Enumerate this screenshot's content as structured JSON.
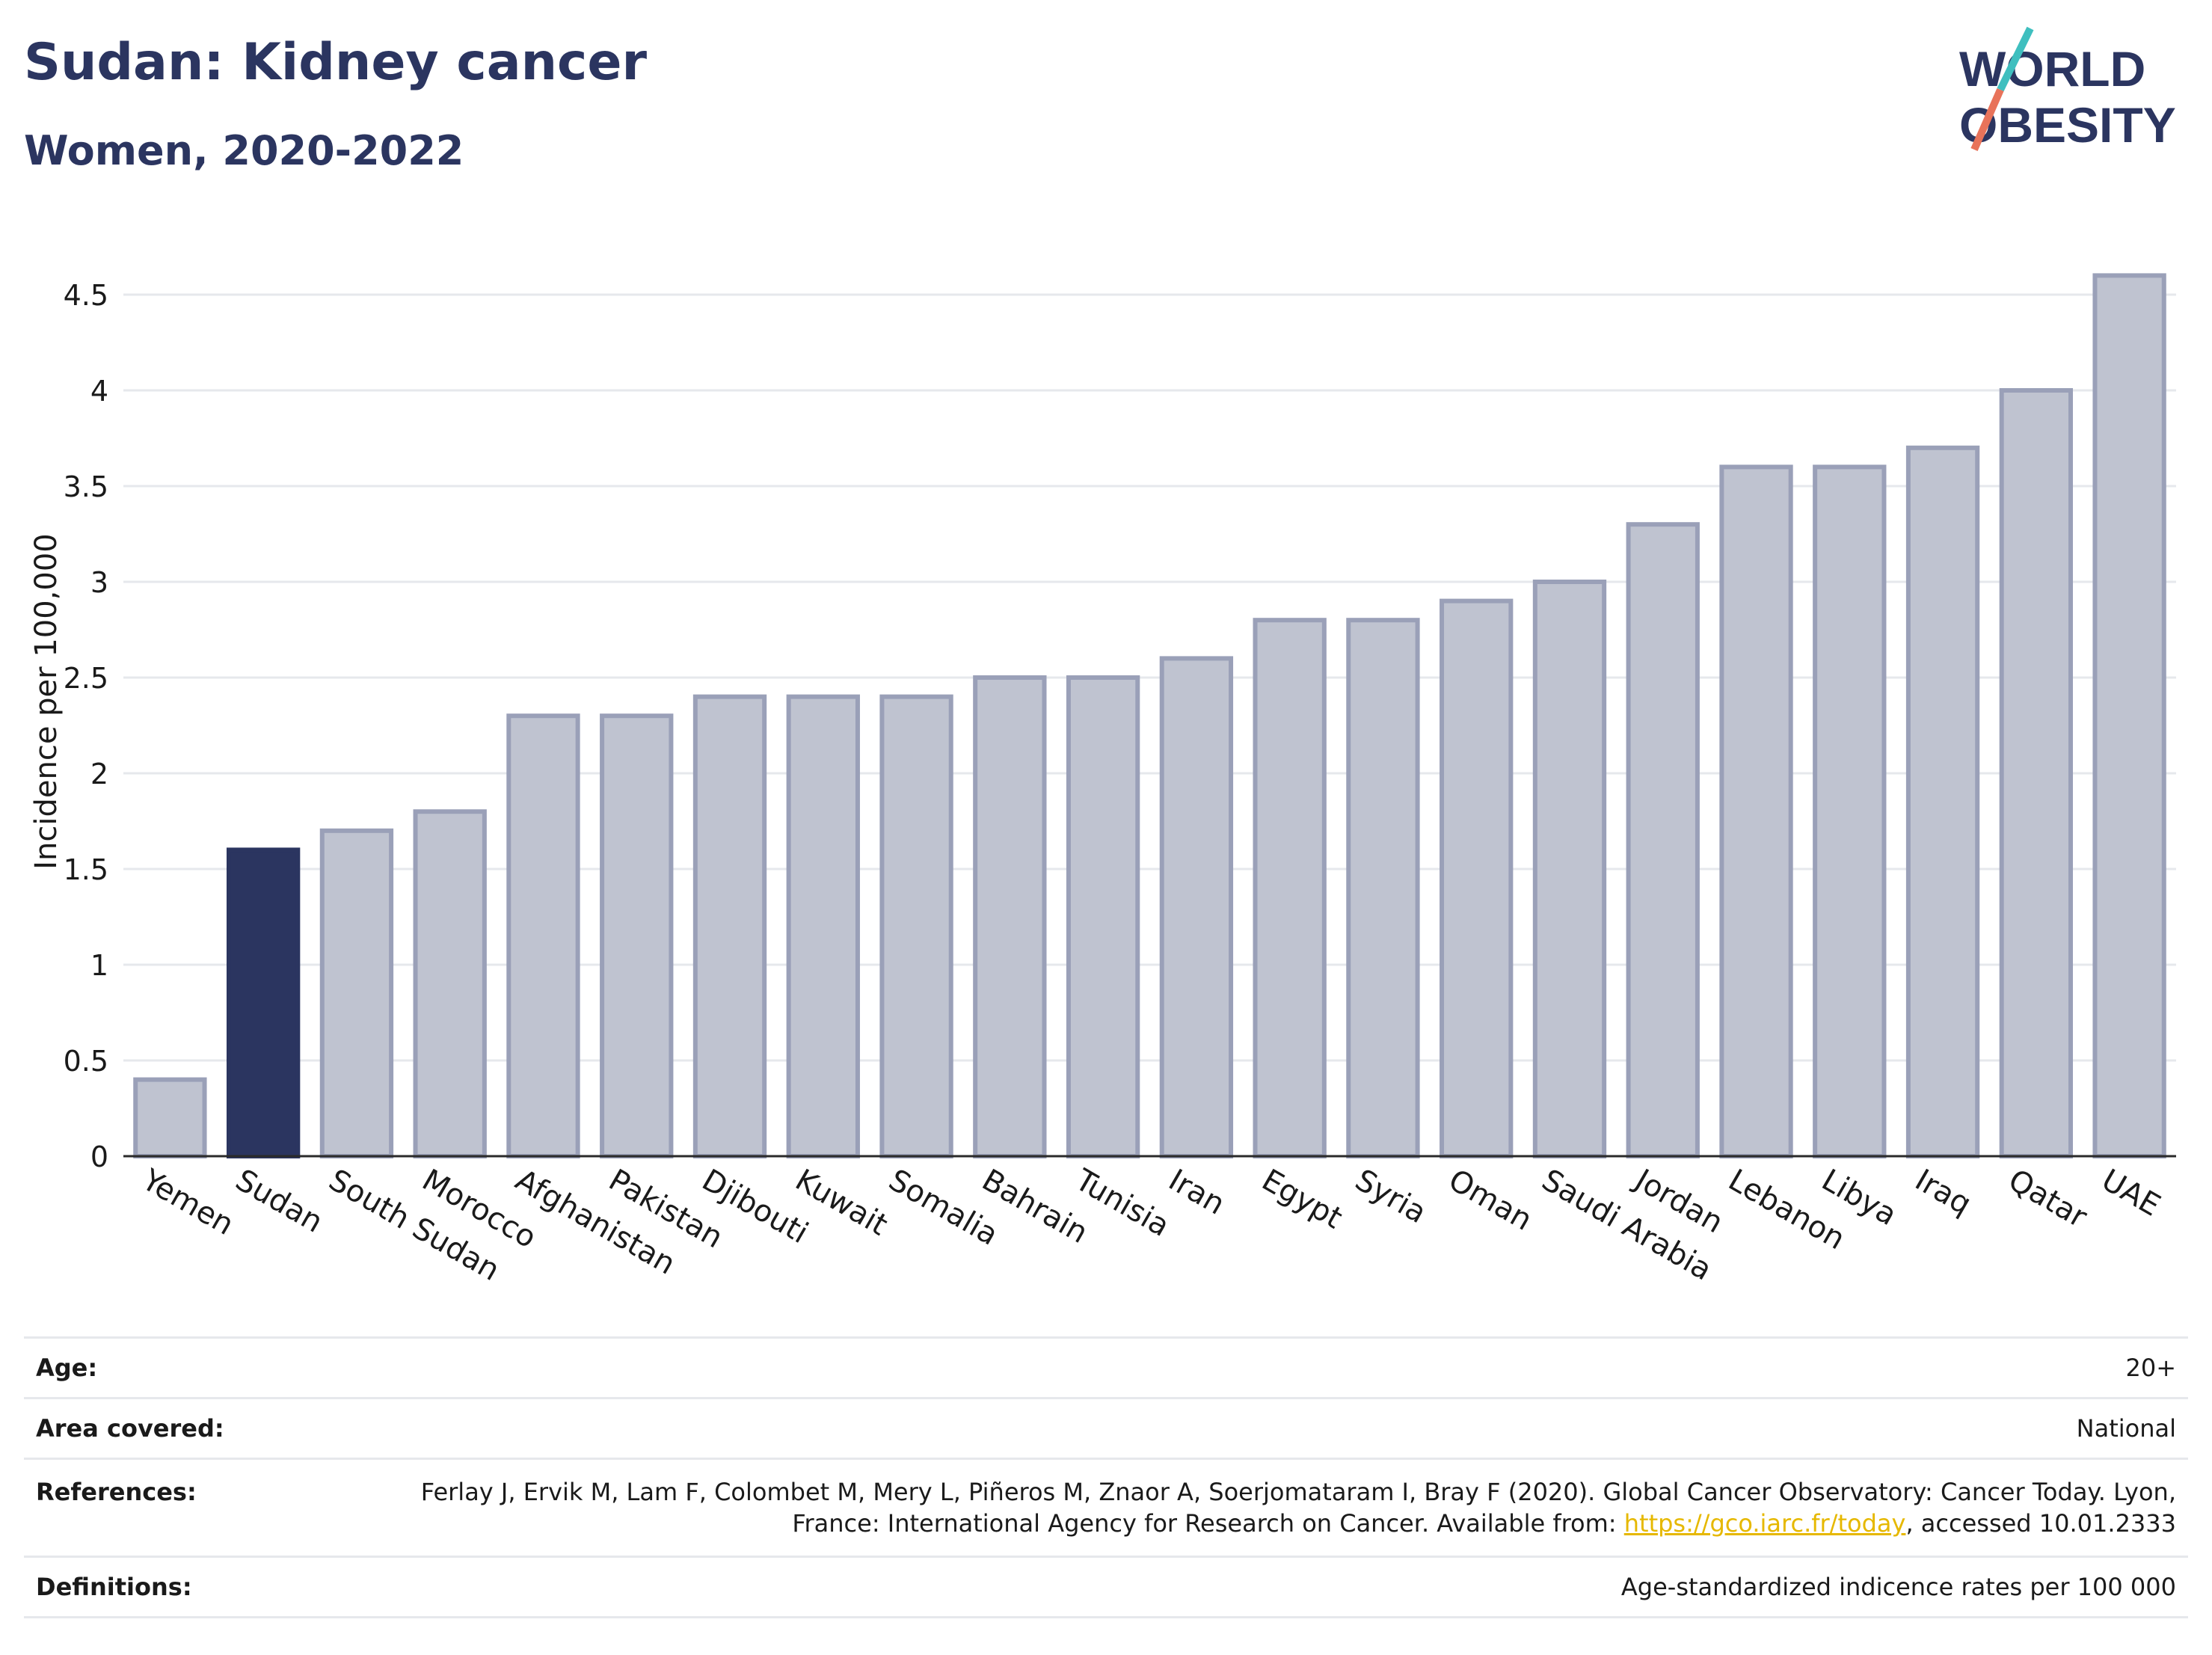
{
  "header": {
    "title": "Sudan: Kidney cancer",
    "subtitle": "Women, 2020-2022"
  },
  "logo": {
    "line1": "WORLD",
    "line2": "OBESITY"
  },
  "colors": {
    "highlight": "#2b3560",
    "bar": "#bfc3d0",
    "bar_edge": "#9aa0b8",
    "grid": "#e6e8ec",
    "link": "#e6b800"
  },
  "chart_data": {
    "type": "bar",
    "categories": [
      "Yemen",
      "Sudan",
      "South Sudan",
      "Morocco",
      "Afghanistan",
      "Pakistan",
      "Djibouti",
      "Kuwait",
      "Somalia",
      "Bahrain",
      "Tunisia",
      "Iran",
      "Egypt",
      "Syria",
      "Oman",
      "Saudi Arabia",
      "Jordan",
      "Lebanon",
      "Libya",
      "Iraq",
      "Qatar",
      "UAE"
    ],
    "values": [
      0.4,
      1.6,
      1.7,
      1.8,
      2.3,
      2.3,
      2.4,
      2.4,
      2.4,
      2.5,
      2.5,
      2.6,
      2.8,
      2.8,
      2.9,
      3.0,
      3.3,
      3.6,
      3.6,
      3.7,
      4.0,
      4.6
    ],
    "highlight": "Sudan",
    "ylabel": "Incidence per 100,000",
    "yticks": [
      0,
      0.5,
      1,
      1.5,
      2,
      2.5,
      3,
      3.5,
      4,
      4.5
    ],
    "ytick_labels": [
      "0",
      "0.5",
      "1",
      "1.5",
      "2",
      "2.5",
      "3",
      "3.5",
      "4",
      "4.5"
    ],
    "ylim": [
      0,
      4.75
    ],
    "grid": true
  },
  "info": {
    "age_label": "Age:",
    "age_value": "20+",
    "area_label": "Area covered:",
    "area_value": "National",
    "references_label": "References:",
    "references_text": "Ferlay J, Ervik M, Lam F, Colombet M, Mery L, Piñeros M, Znaor A, Soerjomataram I, Bray F (2020). Global Cancer Observatory: Cancer Today. Lyon, France: International Agency for Research on Cancer. Available from: ",
    "references_link": "https://gco.iarc.fr/today",
    "references_suffix": ", accessed 10.01.2333",
    "definitions_label": "Definitions:",
    "definitions_value": "Age-standardized indicence rates per 100 000"
  }
}
